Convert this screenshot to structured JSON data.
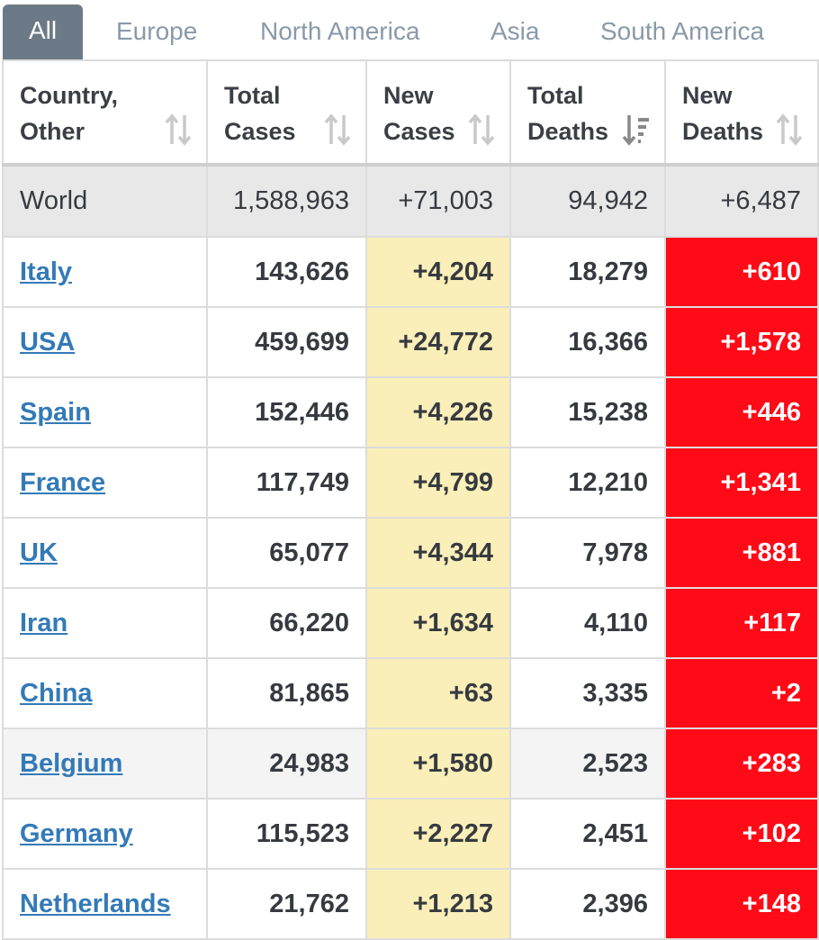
{
  "tabs": [
    "All",
    "Europe",
    "North America",
    "Asia",
    "South America"
  ],
  "headers": {
    "country": [
      "Country,",
      "Other"
    ],
    "total_cases": [
      "Total",
      "Cases"
    ],
    "new_cases": [
      "New",
      "Cases"
    ],
    "total_deaths": [
      "Total",
      "Deaths"
    ],
    "new_deaths": [
      "New",
      "Deaths"
    ]
  },
  "world": {
    "label": "World",
    "total_cases": "1,588,963",
    "new_cases": "+71,003",
    "total_deaths": "94,942",
    "new_deaths": "+6,487"
  },
  "rows": [
    {
      "country": "Italy",
      "total_cases": "143,626",
      "new_cases": "+4,204",
      "total_deaths": "18,279",
      "new_deaths": "+610"
    },
    {
      "country": "USA",
      "total_cases": "459,699",
      "new_cases": "+24,772",
      "total_deaths": "16,366",
      "new_deaths": "+1,578"
    },
    {
      "country": "Spain",
      "total_cases": "152,446",
      "new_cases": "+4,226",
      "total_deaths": "15,238",
      "new_deaths": "+446"
    },
    {
      "country": "France",
      "total_cases": "117,749",
      "new_cases": "+4,799",
      "total_deaths": "12,210",
      "new_deaths": "+1,341"
    },
    {
      "country": "UK",
      "total_cases": "65,077",
      "new_cases": "+4,344",
      "total_deaths": "7,978",
      "new_deaths": "+881"
    },
    {
      "country": "Iran",
      "total_cases": "66,220",
      "new_cases": "+1,634",
      "total_deaths": "4,110",
      "new_deaths": "+117"
    },
    {
      "country": "China",
      "total_cases": "81,865",
      "new_cases": "+63",
      "total_deaths": "3,335",
      "new_deaths": "+2"
    },
    {
      "country": "Belgium",
      "total_cases": "24,983",
      "new_cases": "+1,580",
      "total_deaths": "2,523",
      "new_deaths": "+283"
    },
    {
      "country": "Germany",
      "total_cases": "115,523",
      "new_cases": "+2,227",
      "total_deaths": "2,451",
      "new_deaths": "+102"
    },
    {
      "country": "Netherlands",
      "total_cases": "21,762",
      "new_cases": "+1,213",
      "total_deaths": "2,396",
      "new_deaths": "+148"
    }
  ],
  "colors": {
    "active_tab": "#6b7a86",
    "link": "#337ab7",
    "new_cases_bg": "#fbefb9",
    "new_deaths_bg": "#ff0a17"
  },
  "icons": {
    "sort_inactive": "sort-both-icon",
    "sort_active": "sort-desc-icon"
  }
}
